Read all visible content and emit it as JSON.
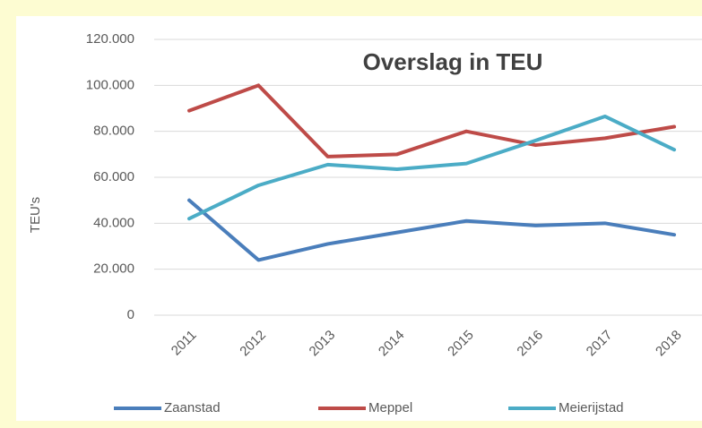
{
  "chart_data": {
    "type": "line",
    "title": "Overslag in TEU",
    "y_label": "TEU's",
    "categories": [
      "2011",
      "2012",
      "2013",
      "2014",
      "2015",
      "2016",
      "2017",
      "2018"
    ],
    "series": [
      {
        "name": "Zaanstad",
        "color": "#4a7ebb",
        "values": [
          50000,
          24000,
          31000,
          36000,
          41000,
          39000,
          40000,
          35000
        ]
      },
      {
        "name": "Meppel",
        "color": "#be4b48",
        "values": [
          89000,
          100000,
          69000,
          70000,
          80000,
          74000,
          77000,
          82000
        ]
      },
      {
        "name": "Meierijstad",
        "color": "#4bacc6",
        "values": [
          42000,
          56500,
          65500,
          63500,
          66000,
          76000,
          86500,
          72000
        ]
      }
    ],
    "ylim": [
      0,
      120000
    ],
    "yticks": [
      0,
      {
        "value": 20000,
        "label": "20.000"
      },
      {
        "value": 40000,
        "label": "40.000"
      },
      {
        "value": 60000,
        "label": "60.000"
      },
      {
        "value": 80000,
        "label": "80.000"
      },
      {
        "value": 100000,
        "label": "100.000"
      },
      {
        "value": 120000,
        "label": "120.000"
      }
    ],
    "grid": true,
    "legend": "bottom"
  }
}
